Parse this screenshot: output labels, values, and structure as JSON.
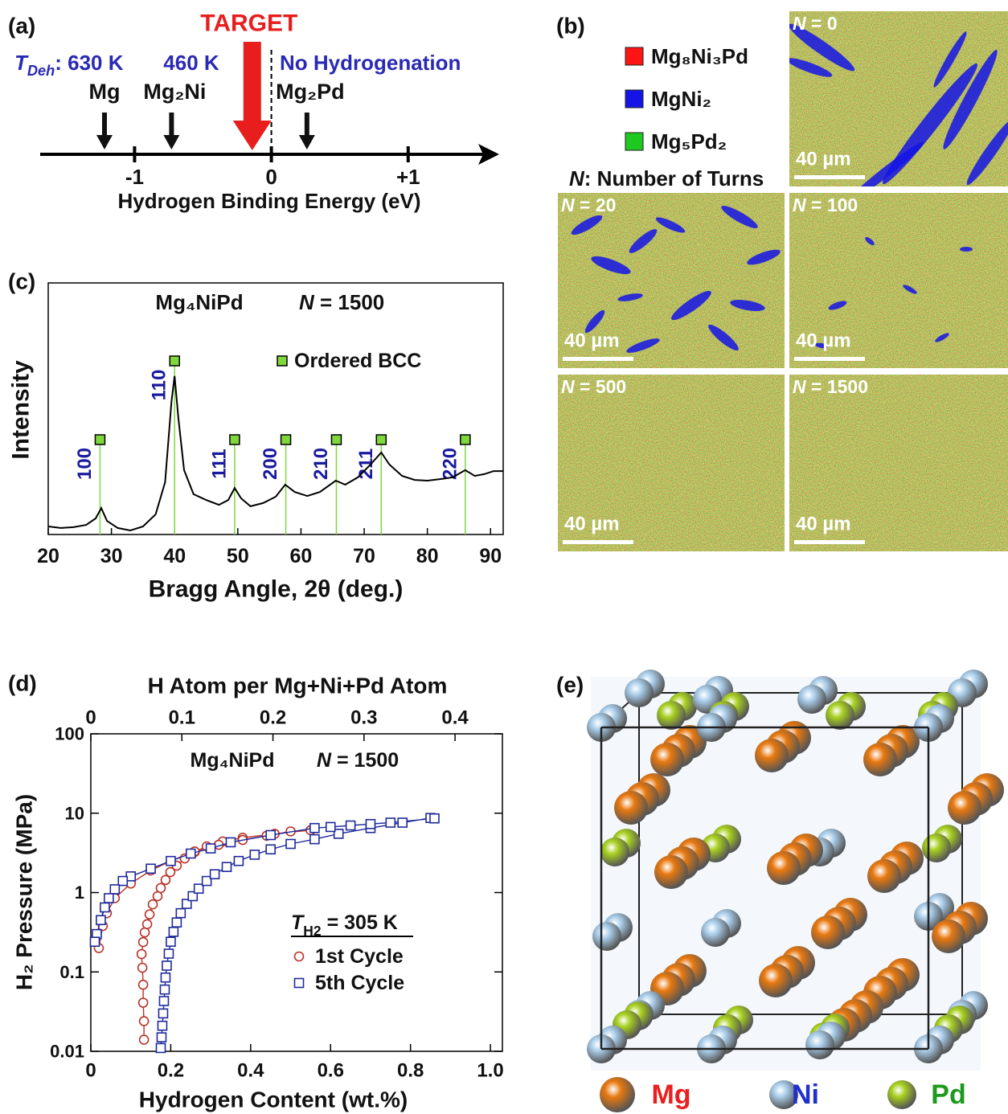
{
  "chart_data": [
    {
      "type": "number-line",
      "label": "(a)",
      "xlabel": "Hydrogen Binding Energy (eV)",
      "xlim": [
        -1.69,
        1.63
      ],
      "xticks": [
        -1,
        0,
        {
          "value": 1,
          "label": "+1"
        }
      ],
      "threshold": 0,
      "markers": [
        {
          "name": "Mg",
          "value": -1.22
        },
        {
          "name": "Mg₂Ni",
          "value": -0.73
        },
        {
          "name": "Mg₂Pd",
          "value": 0.26
        }
      ],
      "target": {
        "name": "TARGET",
        "value": -0.14,
        "color": "#e81e1e"
      },
      "temperatures": {
        "symbol": "T",
        "subscript": "Deh",
        "labels": [
          ": 630 K",
          "460 K",
          "No Hydrogenation"
        ],
        "color": "#2a2ab4"
      }
    },
    {
      "type": "line",
      "label": "(c)",
      "xlabel": "Bragg Angle, 2θ (deg.)",
      "ylabel": "Intensity",
      "annotation": {
        "formula": "Mg₄NiPd",
        "symbol": "N",
        "text": " = 1500"
      },
      "xlim": [
        20,
        92
      ],
      "ylim": [
        0,
        100
      ],
      "xticks": [
        20,
        30,
        40,
        50,
        60,
        70,
        80,
        90
      ],
      "x": [
        20,
        22,
        24,
        26,
        27.5,
        28.4,
        29.3,
        31,
        33,
        35,
        37,
        38.5,
        39.5,
        40,
        40.6,
        41.5,
        43,
        45,
        47,
        48.5,
        49.5,
        50.5,
        52,
        54,
        56,
        57.5,
        59,
        61,
        63,
        65.5,
        67,
        69,
        71,
        72.7,
        74,
        76,
        78,
        80,
        82,
        84,
        86,
        87.5,
        89,
        90.5,
        92
      ],
      "series": [
        {
          "color": "#000000",
          "values": [
            3.2,
            2.6,
            2.9,
            3.8,
            6.4,
            10.5,
            5.4,
            2.6,
            1.6,
            3.2,
            8,
            20.8,
            52.7,
            63,
            46.3,
            25.6,
            16,
            13.7,
            11.8,
            13.7,
            18.5,
            14.4,
            11.2,
            12.5,
            15,
            19.8,
            16.9,
            15.3,
            16.9,
            21.4,
            19.8,
            22.7,
            27.8,
            32.6,
            27.8,
            23.3,
            21.7,
            21.4,
            22,
            22.7,
            25.6,
            23.3,
            24,
            25.2,
            25.2
          ]
        }
      ],
      "peaks": {
        "name": "Ordered BCC",
        "color": "#7ed83c",
        "label_color": "#1a1a9e",
        "labels": [
          "100",
          "110",
          "111",
          "200",
          "210",
          "211",
          "220"
        ],
        "x": [
          28.2,
          40,
          49.5,
          57.6,
          65.6,
          72.7,
          86
        ],
        "values": [
          37.7,
          69,
          37.7,
          37.7,
          37.7,
          37.7,
          37.7
        ]
      }
    },
    {
      "type": "scatter",
      "label": "(d)",
      "xlabel": "Hydrogen Content (wt.%)",
      "ylabel": "H₂ Pressure (MPa)",
      "x2label": "H Atom per Mg+Ni+Pd Atom",
      "annotation": {
        "formula": "Mg₄NiPd",
        "symbol": "N",
        "text": " = 1500"
      },
      "legend_title": {
        "symbol": "T",
        "subscript": "H2",
        "text": " = 305 K"
      },
      "xlim": [
        0,
        1.03
      ],
      "xticks": [
        0,
        0.2,
        0.4,
        0.6,
        0.8,
        {
          "value": 1,
          "label": "1.0"
        }
      ],
      "x2lim": [
        0,
        0.452
      ],
      "x2ticks": [
        0,
        0.1,
        0.2,
        0.3,
        0.4
      ],
      "ylim": [
        0.01,
        100
      ],
      "yticks": [
        0.01,
        0.1,
        1,
        10,
        100
      ],
      "log_y": true,
      "series": [
        {
          "name": "1st Cycle",
          "color": "#b83228",
          "marker": "circle",
          "x": [
            0.133,
            0.133,
            0.131,
            0.131,
            0.129,
            0.127,
            0.131,
            0.135,
            0.141,
            0.147,
            0.155,
            0.167,
            0.175,
            0.187,
            0.199,
            0.215,
            0.235,
            0.26,
            0.29,
            0.33,
            0.38,
            0.46,
            0.55,
            null,
            0.5,
            0.44,
            0.38,
            0.32,
            0.26,
            0.2,
            0.15,
            0.1,
            0.06,
            0.04,
            0.03,
            0.02
          ],
          "values": [
            0.014,
            0.024,
            0.041,
            0.069,
            0.113,
            0.168,
            0.238,
            0.315,
            0.4,
            0.53,
            0.71,
            0.9,
            1.14,
            1.44,
            1.81,
            2.18,
            2.69,
            3.24,
            3.82,
            4.4,
            4.9,
            5.5,
            6.1,
            null,
            5.9,
            5.2,
            4.6,
            4,
            3.3,
            2.5,
            1.9,
            1.3,
            0.85,
            0.55,
            0.38,
            0.2
          ]
        },
        {
          "name": "5th Cycle",
          "color": "#1f2a9c",
          "marker": "square",
          "x": [
            0.175,
            0.177,
            0.179,
            0.181,
            0.183,
            0.185,
            0.187,
            0.19,
            0.195,
            0.2,
            0.207,
            0.215,
            0.225,
            0.24,
            0.255,
            0.27,
            0.29,
            0.31,
            0.34,
            0.37,
            0.41,
            0.45,
            0.5,
            0.56,
            0.62,
            0.7,
            0.78,
            0.85,
            null,
            0.86,
            0.75,
            0.7,
            0.65,
            0.6,
            0.56,
            0.45,
            0.35,
            0.3,
            0.25,
            0.2,
            0.15,
            0.1,
            0.08,
            0.06,
            0.045,
            0.035,
            0.025,
            0.015,
            0.01
          ],
          "values": [
            0.011,
            0.015,
            0.021,
            0.03,
            0.043,
            0.06,
            0.085,
            0.12,
            0.17,
            0.24,
            0.32,
            0.42,
            0.55,
            0.72,
            0.9,
            1.12,
            1.4,
            1.7,
            2.1,
            2.5,
            3,
            3.5,
            4.1,
            4.7,
            5.5,
            6.5,
            7.6,
            8.7,
            null,
            8.6,
            7.6,
            7.3,
            7,
            6.7,
            6.5,
            5.3,
            4.3,
            3.6,
            3.1,
            2.5,
            2,
            1.6,
            1.4,
            1.1,
            0.85,
            0.65,
            0.45,
            0.3,
            0.24
          ]
        }
      ]
    }
  ],
  "panel_b": {
    "label": "(b)",
    "legend": [
      {
        "name": "Mg₈Ni₃Pd",
        "color": "#ff1414"
      },
      {
        "name": "MgNi₂",
        "color": "#1414e6"
      },
      {
        "name": "Mg₅Pd₂",
        "color": "#1ec81e"
      }
    ],
    "turns_note": {
      "symbol": "N",
      "text": ": Number of Turns"
    },
    "maps": [
      {
        "symbol": "N",
        "text": " = 0",
        "scale_bar": "40 µm"
      },
      {
        "symbol": "N",
        "text": " = 20",
        "scale_bar": "40 µm"
      },
      {
        "symbol": "N",
        "text": " = 100",
        "scale_bar": "40 µm"
      },
      {
        "symbol": "N",
        "text": " = 500",
        "scale_bar": "40 µm"
      },
      {
        "symbol": "N",
        "text": " = 1500",
        "scale_bar": "40 µm"
      }
    ]
  },
  "panel_e": {
    "label": "(e)",
    "legend": [
      {
        "name": "Mg",
        "color": "#e8780f",
        "text_color": "#e82020"
      },
      {
        "name": "Ni",
        "color": "#a9cdea",
        "text_color": "#1f2fd0"
      },
      {
        "name": "Pd",
        "color": "#a8d020",
        "text_color": "#1e9a1e"
      }
    ]
  }
}
